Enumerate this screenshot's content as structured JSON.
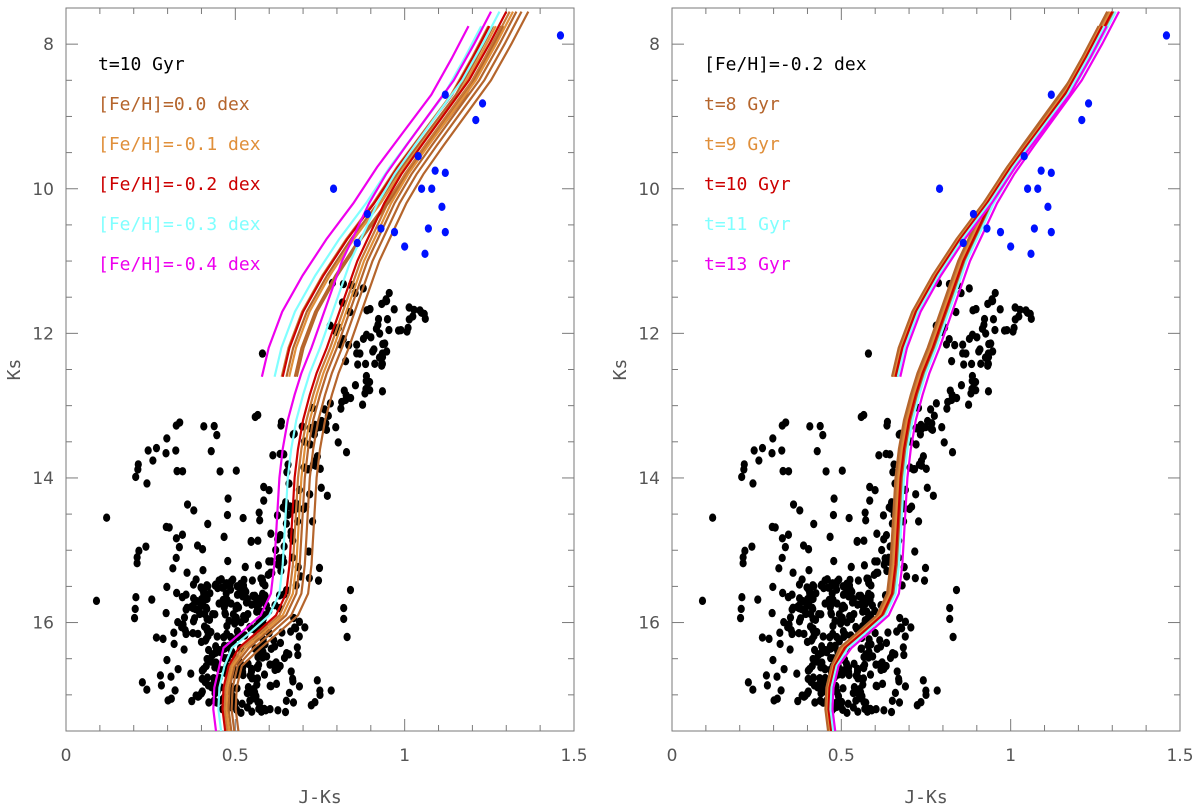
{
  "chart_data": [
    {
      "type": "scatter",
      "xlabel": "J-Ks",
      "ylabel": "Ks",
      "xlim": [
        0,
        1.5
      ],
      "ylim": [
        17.5,
        7.5
      ],
      "xticks": [
        "0",
        "0.5",
        "1",
        "1.5"
      ],
      "yticks": [
        "8",
        "10",
        "12",
        "14",
        "16"
      ],
      "legend_header": "t=10 Gyr",
      "legend_placement": "top-left",
      "isochrones": [
        {
          "name": "[Fe/H]=0.0 dex",
          "color": "#b5652c",
          "shift": 0.045,
          "bump_dx": 0.02
        },
        {
          "name": "[Fe/H]=-0.1 dex",
          "color": "#e08f3a",
          "shift": 0.02,
          "bump_dx": 0.015
        },
        {
          "name": "[Fe/H]=-0.2 dex",
          "color": "#cc0000",
          "shift": 0.0,
          "bump_dx": 0.01
        },
        {
          "name": "[Fe/H]=-0.3 dex",
          "color": "#80ffff",
          "shift": -0.02,
          "bump_dx": 0.0
        },
        {
          "name": "[Fe/H]=-0.4 dex",
          "color": "#ee00ee",
          "shift": -0.045,
          "bump_dx": -0.02
        }
      ],
      "extra_tracks": [
        {
          "color": "#b5652c",
          "shift": 0.065
        },
        {
          "color": "#b5652c",
          "shift": 0.03
        },
        {
          "color": "#c87a3a",
          "shift": 0.01
        }
      ],
      "blue_points": [
        [
          0.79,
          10.0
        ],
        [
          0.89,
          10.35
        ],
        [
          0.86,
          10.75
        ],
        [
          0.93,
          10.55
        ],
        [
          0.97,
          10.6
        ],
        [
          1.0,
          10.8
        ],
        [
          1.06,
          10.9
        ],
        [
          1.07,
          10.55
        ],
        [
          1.12,
          10.6
        ],
        [
          1.05,
          10.0
        ],
        [
          1.11,
          10.25
        ],
        [
          1.12,
          9.78
        ],
        [
          1.09,
          9.75
        ],
        [
          1.08,
          10.0
        ],
        [
          1.12,
          8.7
        ],
        [
          1.21,
          9.05
        ],
        [
          1.23,
          8.82
        ],
        [
          1.46,
          7.88
        ],
        [
          1.04,
          9.55
        ]
      ]
    },
    {
      "type": "scatter",
      "xlabel": "J-Ks",
      "ylabel": "Ks",
      "xlim": [
        0,
        1.5
      ],
      "ylim": [
        17.5,
        7.5
      ],
      "xticks": [
        "0",
        "0.5",
        "1",
        "1.5"
      ],
      "yticks": [
        "8",
        "10",
        "12",
        "14",
        "16"
      ],
      "legend_header": "[Fe/H]=-0.2 dex",
      "legend_placement": "top-left",
      "isochrones": [
        {
          "name": "t=8 Gyr",
          "color": "#b5652c",
          "shift": -0.015,
          "bump_dx": 0.0
        },
        {
          "name": "t=9 Gyr",
          "color": "#e08f3a",
          "shift": -0.005,
          "bump_dx": 0.0
        },
        {
          "name": "t=10 Gyr",
          "color": "#cc0000",
          "shift": 0.0,
          "bump_dx": 0.0
        },
        {
          "name": "t=11 Gyr",
          "color": "#80ffff",
          "shift": 0.01,
          "bump_dx": 0.0
        },
        {
          "name": "t=13 Gyr",
          "color": "#ee00ee",
          "shift": 0.02,
          "bump_dx": 0.0
        }
      ],
      "extra_tracks": [
        {
          "color": "#b5652c",
          "shift": 0.005
        },
        {
          "color": "#c87a3a",
          "shift": -0.01
        }
      ],
      "blue_points": [
        [
          0.79,
          10.0
        ],
        [
          0.89,
          10.35
        ],
        [
          0.86,
          10.75
        ],
        [
          0.93,
          10.55
        ],
        [
          0.97,
          10.6
        ],
        [
          1.0,
          10.8
        ],
        [
          1.06,
          10.9
        ],
        [
          1.07,
          10.55
        ],
        [
          1.12,
          10.6
        ],
        [
          1.05,
          10.0
        ],
        [
          1.11,
          10.25
        ],
        [
          1.12,
          9.78
        ],
        [
          1.09,
          9.75
        ],
        [
          1.08,
          10.0
        ],
        [
          1.12,
          8.7
        ],
        [
          1.21,
          9.05
        ],
        [
          1.23,
          8.82
        ],
        [
          1.46,
          7.88
        ],
        [
          1.04,
          9.55
        ]
      ]
    }
  ]
}
